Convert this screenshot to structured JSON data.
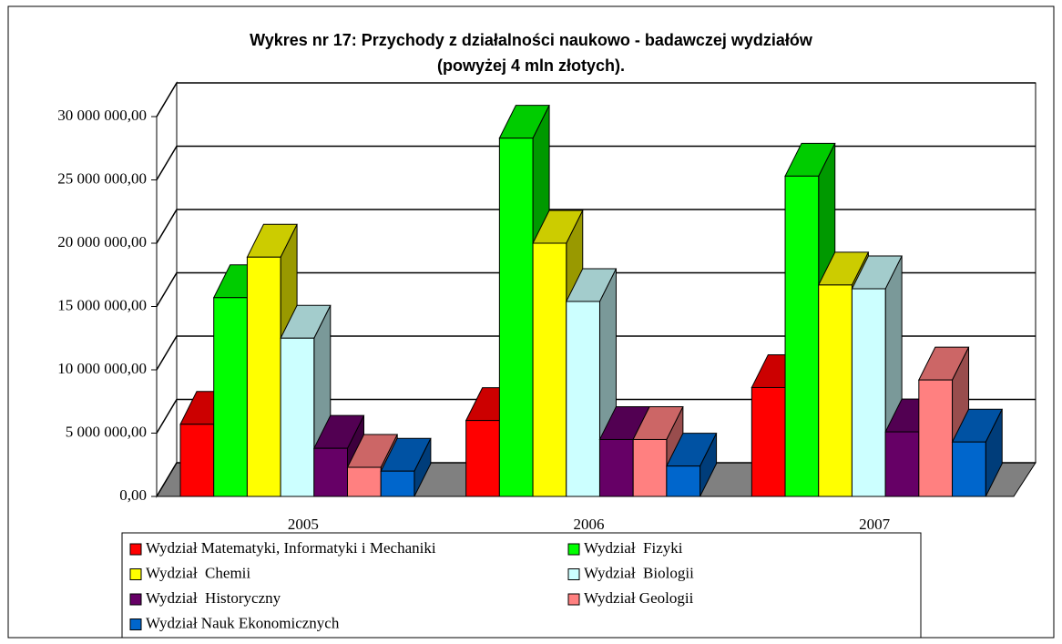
{
  "chart_data": {
    "type": "bar3d",
    "title": [
      "Wykres nr 17: Przychody z działalności naukowo - badawczej wydziałów",
      "(powyżej 4 mln złotych)."
    ],
    "categories": [
      "2005",
      "2006",
      "2007"
    ],
    "series": [
      {
        "name": "Wydział Matematyki, Informatyki i Mechaniki",
        "color": "#ff0000",
        "values": [
          5700000,
          6000000,
          8600000
        ]
      },
      {
        "name": "Wydział  Fizyki",
        "color": "#00ff00",
        "values": [
          15700000,
          28300000,
          25300000
        ]
      },
      {
        "name": "Wydział  Chemii",
        "color": "#ffff00",
        "values": [
          18900000,
          20000000,
          16700000
        ]
      },
      {
        "name": "Wydział  Biologii",
        "color": "#ccffff",
        "values": [
          12500000,
          15400000,
          16400000
        ]
      },
      {
        "name": "Wydział  Historyczny",
        "color": "#660066",
        "values": [
          3800000,
          4500000,
          5100000
        ]
      },
      {
        "name": "Wydział Geologii",
        "color": "#ff8080",
        "values": [
          2300000,
          4500000,
          9200000
        ]
      },
      {
        "name": "Wydział Nauk Ekonomicznych",
        "color": "#0066cc",
        "values": [
          2000000,
          2400000,
          4300000
        ]
      }
    ],
    "ylim": [
      0,
      30000000
    ],
    "yticks": [
      {
        "value": 0,
        "label": "0,00"
      },
      {
        "value": 5000000,
        "label": "5 000 000,00"
      },
      {
        "value": 10000000,
        "label": "10 000 000,00"
      },
      {
        "value": 15000000,
        "label": "15 000 000,00"
      },
      {
        "value": 20000000,
        "label": "20 000 000,00"
      },
      {
        "value": 25000000,
        "label": "25 000 000,00"
      },
      {
        "value": 30000000,
        "label": "30 000 000,00"
      }
    ],
    "grid": true
  }
}
